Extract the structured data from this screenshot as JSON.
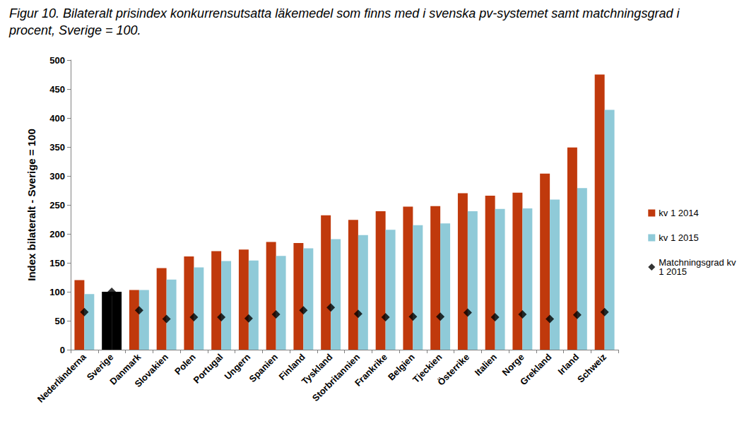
{
  "chart_data": {
    "type": "bar",
    "title": "Figur 10. Bilateralt prisindex konkurrensutsatta läkemedel som finns med i svenska pv-systemet samt matchningsgrad i procent, Sverige = 100.",
    "y_label": "Index bilateralt - Sverige = 100",
    "categories": [
      "Nederländerna",
      "Sverige",
      "Danmark",
      "Slovakien",
      "Polen",
      "Portugal",
      "Ungern",
      "Spanien",
      "Finland",
      "Tyskland",
      "Storbritannien",
      "Frankrike",
      "Belgien",
      "Tjeckien",
      "Österrike",
      "Italien",
      "Norge",
      "Grekland",
      "Irland",
      "Schweiz"
    ],
    "series": [
      {
        "name": "kv 1 2014",
        "type": "bar",
        "color": "#c0390c",
        "colors": [
          "#c0390c",
          "#000000",
          "#c0390c",
          "#c0390c",
          "#c0390c",
          "#c0390c",
          "#c0390c",
          "#c0390c",
          "#c0390c",
          "#c0390c",
          "#c0390c",
          "#c0390c",
          "#c0390c",
          "#c0390c",
          "#c0390c",
          "#c0390c",
          "#c0390c",
          "#c0390c",
          "#c0390c",
          "#c0390c"
        ],
        "values": [
          120,
          100,
          103,
          141,
          161,
          170,
          173,
          186,
          184,
          232,
          224,
          239,
          247,
          248,
          270,
          266,
          271,
          304,
          349,
          475
        ]
      },
      {
        "name": "kv 1 2015",
        "type": "bar",
        "color": "#8fcad8",
        "colors": [
          "#8fcad8",
          "#000000",
          "#8fcad8",
          "#8fcad8",
          "#8fcad8",
          "#8fcad8",
          "#8fcad8",
          "#8fcad8",
          "#8fcad8",
          "#8fcad8",
          "#8fcad8",
          "#8fcad8",
          "#8fcad8",
          "#8fcad8",
          "#8fcad8",
          "#8fcad8",
          "#8fcad8",
          "#8fcad8",
          "#8fcad8",
          "#8fcad8"
        ],
        "values": [
          96,
          100,
          103,
          121,
          142,
          153,
          154,
          162,
          175,
          191,
          198,
          207,
          215,
          218,
          239,
          243,
          244,
          259,
          279,
          414
        ]
      },
      {
        "name": "Matchningsgrad kv 1 2015",
        "type": "scatter",
        "marker": "diamond",
        "color": "#000000",
        "values": [
          65,
          100,
          68,
          53,
          56,
          56,
          54,
          61,
          68,
          73,
          62,
          56,
          57,
          57,
          64,
          56,
          61,
          53,
          60,
          65
        ]
      }
    ],
    "ylim": [
      0,
      500
    ],
    "yticks": [
      0,
      50,
      100,
      150,
      200,
      250,
      300,
      350,
      400,
      450,
      500
    ],
    "grid": false,
    "legend": "right"
  }
}
